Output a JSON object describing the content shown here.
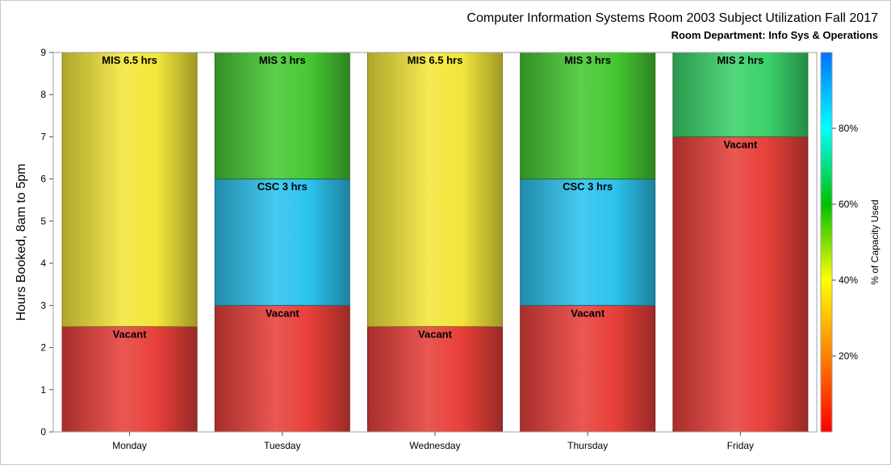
{
  "header": {
    "title": "Computer Information Systems Room 2003 Subject Utilization Fall 2017",
    "subtitle": "Room Department:  Info Sys & Operations"
  },
  "chart_data": {
    "type": "bar",
    "stacked": true,
    "title": "Computer Information Systems Room 2003 Subject Utilization Fall 2017",
    "subtitle": "Room Department:  Info Sys & Operations",
    "xlabel": "",
    "ylabel": "Hours Booked, 8am to 5pm",
    "ylim": [
      0,
      9
    ],
    "yticks": [
      0,
      1,
      2,
      3,
      4,
      5,
      6,
      7,
      8,
      9
    ],
    "grid": false,
    "categories": [
      "Monday",
      "Tuesday",
      "Wednesday",
      "Thursday",
      "Friday"
    ],
    "bars": [
      {
        "category": "Monday",
        "segments": [
          {
            "label": "Vacant",
            "value": 2.5,
            "color": "#e8403a"
          },
          {
            "label": "MIS 6.5 hrs",
            "value": 6.5,
            "color": "#f2e63a"
          }
        ]
      },
      {
        "category": "Tuesday",
        "segments": [
          {
            "label": "Vacant",
            "value": 3,
            "color": "#e8403a"
          },
          {
            "label": "CSC 3 hrs",
            "value": 3,
            "color": "#2cc3ee"
          },
          {
            "label": "MIS 3 hrs",
            "value": 3,
            "color": "#46c832"
          }
        ]
      },
      {
        "category": "Wednesday",
        "segments": [
          {
            "label": "Vacant",
            "value": 2.5,
            "color": "#e8403a"
          },
          {
            "label": "MIS 6.5 hrs",
            "value": 6.5,
            "color": "#f2e63a"
          }
        ]
      },
      {
        "category": "Thursday",
        "segments": [
          {
            "label": "Vacant",
            "value": 3,
            "color": "#e8403a"
          },
          {
            "label": "CSC 3 hrs",
            "value": 3,
            "color": "#2cc3ee"
          },
          {
            "label": "MIS 3 hrs",
            "value": 3,
            "color": "#46c832"
          }
        ]
      },
      {
        "category": "Friday",
        "segments": [
          {
            "label": "Vacant",
            "value": 7,
            "color": "#e8403a"
          },
          {
            "label": "MIS 2 hrs",
            "value": 2,
            "color": "#3ad26a"
          }
        ]
      }
    ],
    "colorbar": {
      "label": "% of Capacity Used",
      "range": [
        0,
        100
      ],
      "ticks": [
        {
          "value": 20,
          "label": "20%"
        },
        {
          "value": 40,
          "label": "40%"
        },
        {
          "value": 60,
          "label": "60%"
        },
        {
          "value": 80,
          "label": "80%"
        }
      ],
      "stops": [
        "#ff0000",
        "#ff7f00",
        "#ffff00",
        "#00c000",
        "#00ffff",
        "#0070ff"
      ]
    }
  }
}
